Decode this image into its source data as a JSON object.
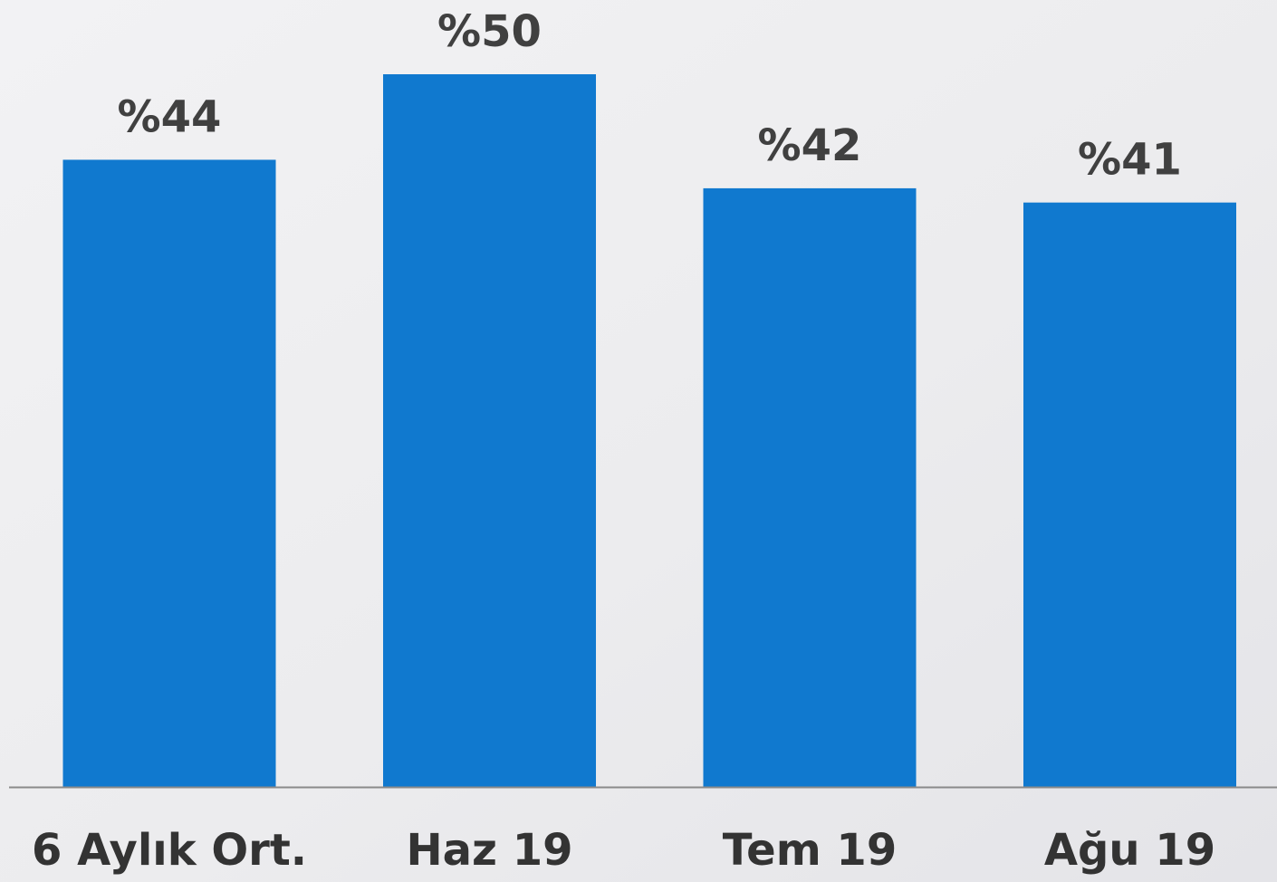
{
  "chart_data": {
    "type": "bar",
    "categories": [
      "6 Aylık Ort.",
      "Haz 19",
      "Tem 19",
      "Ağu 19"
    ],
    "values": [
      44,
      50,
      42,
      41
    ],
    "value_labels": [
      "%44",
      "%50",
      "%42",
      "%41"
    ],
    "color": "#1079cf"
  }
}
